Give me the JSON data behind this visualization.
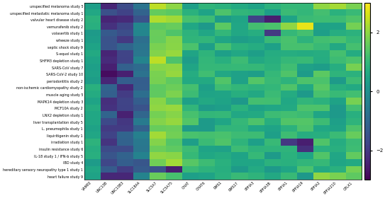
{
  "row_labels": [
    "unspecified melanoma study 5",
    "unspecified metastatic melanoma study 1",
    "valvular heart disease study 2",
    "vemurafenib study 2",
    "volasertib study 1",
    "wheeze study 1",
    "septic shock study 9",
    "S-equol study 1",
    "SHFM3 depletion study 1",
    "SARS-CoV study 7",
    "SARS-CoV-2 study 10",
    "periodontitis study 2",
    "non-ischemic cardiomyopathy study 2",
    "muscle aging study 5",
    "MAPK14 depletion study 3",
    "MCF10A study 2",
    "LNX2 depletion study 1",
    "liver transplantation study 5",
    "L. pneumophila study 1",
    "liquiritigenin study 1",
    "irradiation study 1",
    "insulin resistance study 6",
    "IL-18 study 1 / IFN-b study 5",
    "IBD study 4",
    "hereditary sensory neuropathy type 1 study 1",
    "heart failure study 9"
  ],
  "col_labels": [
    "VAMP2",
    "UNC13B",
    "UNC13B3",
    "SLC18A4",
    "SLC5A7",
    "SLC5A75",
    "CHAT",
    "CHAT6",
    "RMS1",
    "RMS17",
    "PPFIA3",
    "PPFIA3B",
    "PPFIA1",
    "PPFIA19",
    "PPFIA2",
    "PPFIA210",
    "CPLX1"
  ],
  "vmin": -3,
  "vmax": 3,
  "cmap": "viridis",
  "figsize": [
    5.43,
    2.8
  ],
  "dpi": 100,
  "colorbar_ticks": [
    -2,
    0,
    2
  ],
  "background_color": "#ffffff"
}
